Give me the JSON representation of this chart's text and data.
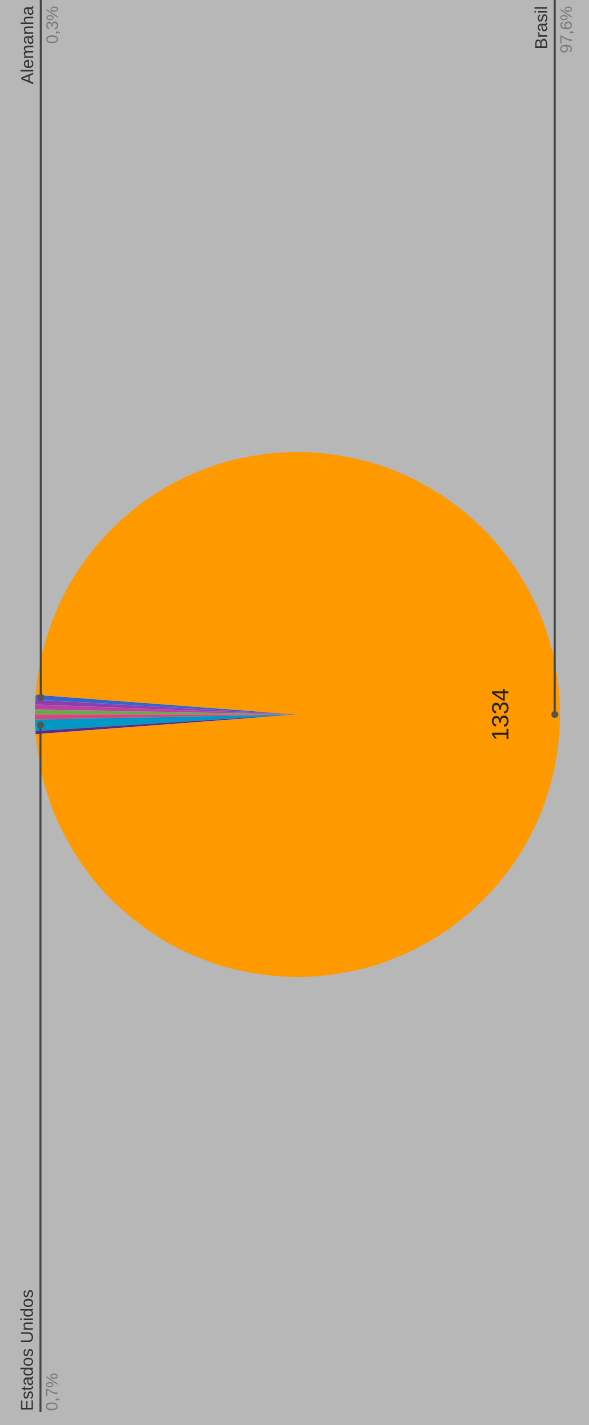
{
  "chart_data": {
    "type": "pie",
    "categories": [
      "Alemanha",
      null,
      null,
      null,
      null,
      "Estados Unidos",
      null,
      "Brasil"
    ],
    "values": [
      0.3,
      0.3,
      0.3,
      0.3,
      0.3,
      0.7,
      0.2,
      97.6
    ],
    "colors": [
      "#3366cc",
      "#8b3fb0",
      "#c03fa0",
      "#6aa84f",
      "#dd4477",
      "#0099c6",
      "#5b2a86",
      "#ff9900"
    ],
    "value_labels": [
      "0,3%",
      null,
      null,
      null,
      null,
      "0,7%",
      null,
      "97,6%"
    ],
    "annotations": [
      "1334"
    ]
  }
}
